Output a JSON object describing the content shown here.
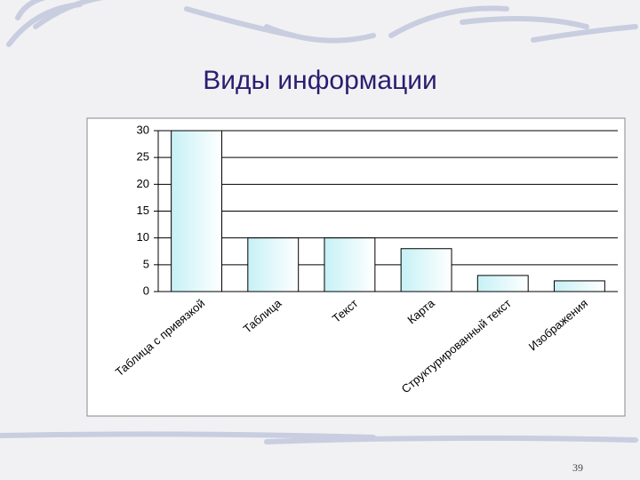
{
  "chart_data": {
    "type": "bar",
    "title": "Виды информации",
    "categories": [
      "Таблица с привязкой",
      "Таблица",
      "Текст",
      "Карта",
      "Структурированный текст",
      "Изображения"
    ],
    "values": [
      30,
      10,
      10,
      8,
      3,
      2
    ],
    "color": "#d2f5f9",
    "ylim": [
      0,
      30
    ],
    "yticks": [
      0,
      5,
      10,
      15,
      20,
      25,
      30
    ],
    "grid": true
  },
  "slide_number": "39"
}
